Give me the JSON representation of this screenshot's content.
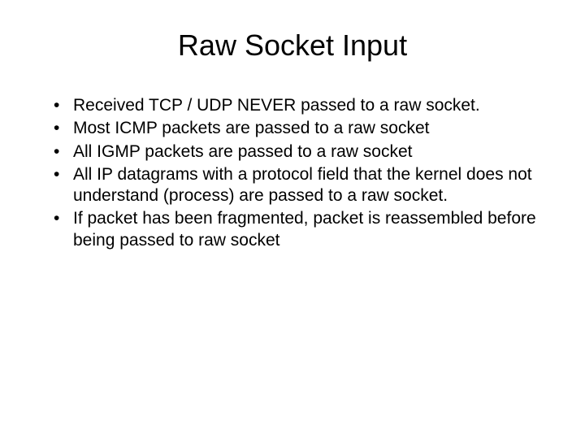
{
  "slide": {
    "title": "Raw Socket Input",
    "title_fontsize": 36,
    "body_fontsize": 21,
    "background_color": "#ffffff",
    "text_color": "#000000",
    "font_family": "Arial",
    "bullets": [
      {
        "marker": "•",
        "text": "Received TCP / UDP NEVER passed to a raw socket."
      },
      {
        "marker": "•",
        "text": "Most ICMP packets are passed to a raw socket"
      },
      {
        "marker": "•",
        "text": "All IGMP packets are passed to a raw socket"
      },
      {
        "marker": "•",
        "text": "All IP datagrams with a protocol field that the kernel does not understand (process) are passed to a raw socket."
      },
      {
        "marker": "•",
        "text": "If packet has been fragmented, packet is reassembled before being passed to raw socket"
      }
    ]
  }
}
